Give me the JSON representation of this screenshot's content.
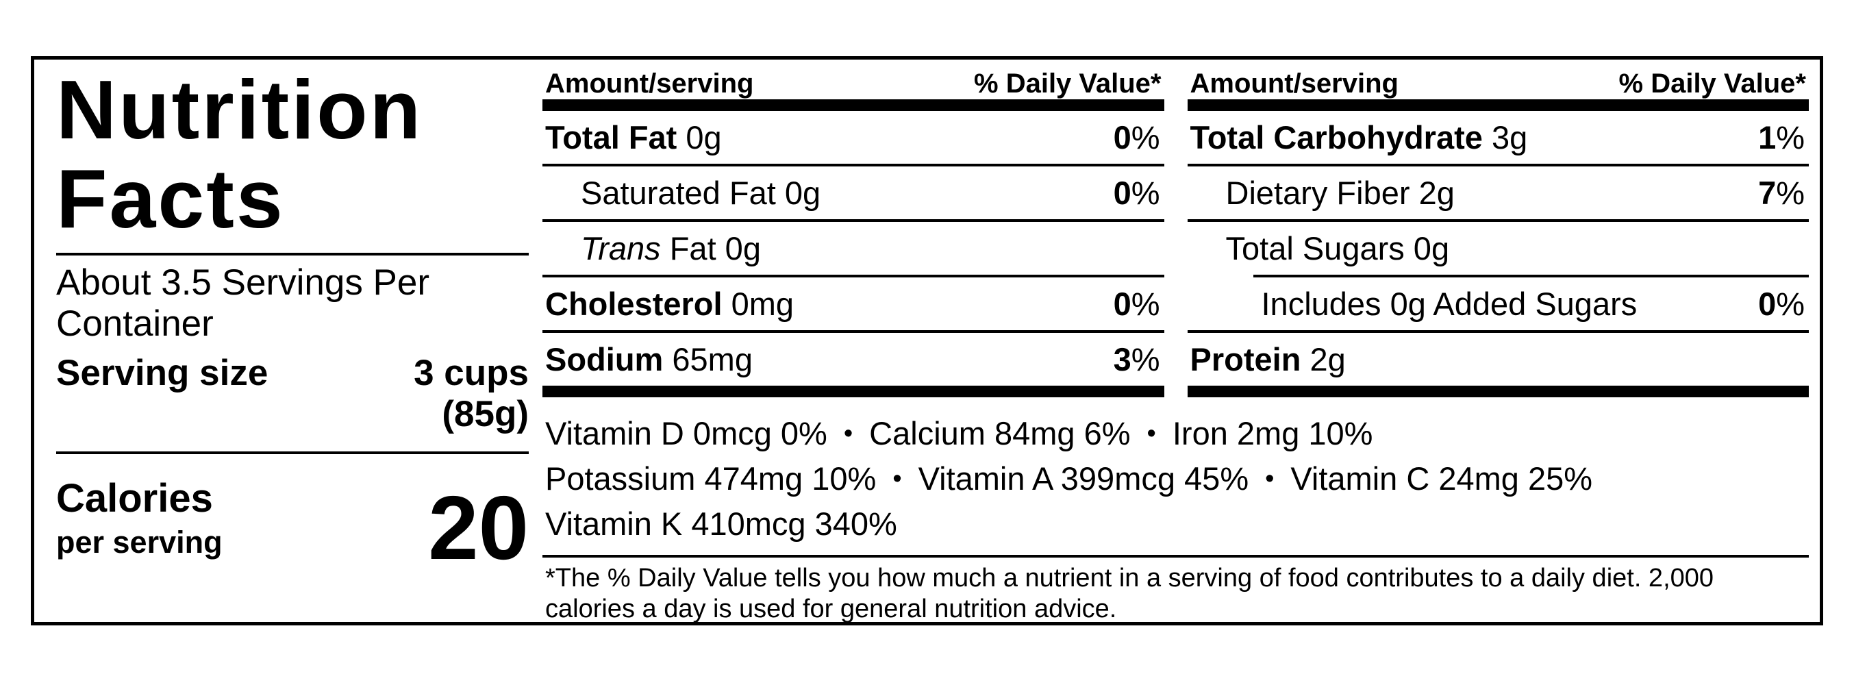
{
  "label": {
    "background_color": "#ffffff",
    "border_color": "#000000",
    "title": {
      "line1": "Nutrition",
      "line2": "Facts"
    },
    "servings_per_container": "About 3.5 Servings Per Container",
    "serving_size": {
      "label": "Serving size",
      "value_line1": "3 cups",
      "value_line2": "(85g)"
    },
    "calories": {
      "label": "Calories",
      "sublabel": "per serving",
      "value": "20"
    },
    "table_header": {
      "amount": "Amount/serving",
      "daily_value": "% Daily Value*"
    },
    "nutrient_tables": [
      {
        "id": "left",
        "rows": [
          {
            "segments": [
              {
                "text": "Total Fat",
                "bold": true
              },
              {
                "text": " 0g"
              }
            ],
            "dv": "0%",
            "indent": 0
          },
          {
            "segments": [
              {
                "text": "Saturated Fat 0g"
              }
            ],
            "dv": "0%",
            "indent": 1
          },
          {
            "segments": [
              {
                "text": "Trans",
                "italic": true
              },
              {
                "text": " Fat 0g"
              }
            ],
            "dv": "",
            "indent": 1
          },
          {
            "segments": [
              {
                "text": "Cholesterol",
                "bold": true
              },
              {
                "text": " 0mg"
              }
            ],
            "dv": "0%",
            "indent": 0
          },
          {
            "segments": [
              {
                "text": "Sodium",
                "bold": true
              },
              {
                "text": " 65mg"
              }
            ],
            "dv": "3%",
            "indent": 0
          }
        ]
      },
      {
        "id": "right",
        "rows": [
          {
            "segments": [
              {
                "text": "Total Carbohydrate",
                "bold": true
              },
              {
                "text": " 3g"
              }
            ],
            "dv": "1%",
            "indent": 0
          },
          {
            "segments": [
              {
                "text": "Dietary Fiber 2g"
              }
            ],
            "dv": "7%",
            "indent": 1
          },
          {
            "segments": [
              {
                "text": "Total Sugars 0g"
              }
            ],
            "dv": "",
            "indent": 1
          },
          {
            "segments": [
              {
                "text": "Includes 0g Added Sugars"
              }
            ],
            "dv": "0%",
            "indent": 2,
            "rule_indented": true
          },
          {
            "segments": [
              {
                "text": "Protein",
                "bold": true
              },
              {
                "text": " 2g"
              }
            ],
            "dv": "",
            "indent": 0
          }
        ]
      }
    ],
    "vitamins": {
      "separator": "•",
      "lines": [
        [
          "Vitamin D 0mcg 0%",
          "Calcium 84mg 6%",
          "Iron 2mg 10%"
        ],
        [
          "Potassium 474mg 10%",
          "Vitamin A 399mcg 45%",
          "Vitamin C 24mg 25%"
        ],
        [
          "Vitamin K 410mcg 340%"
        ]
      ]
    },
    "footnote": {
      "line1": "*The % Daily Value tells you how much a nutrient in a serving of food contributes to a daily diet. 2,000",
      "line2": "calories a day is used for general nutrition advice."
    }
  }
}
